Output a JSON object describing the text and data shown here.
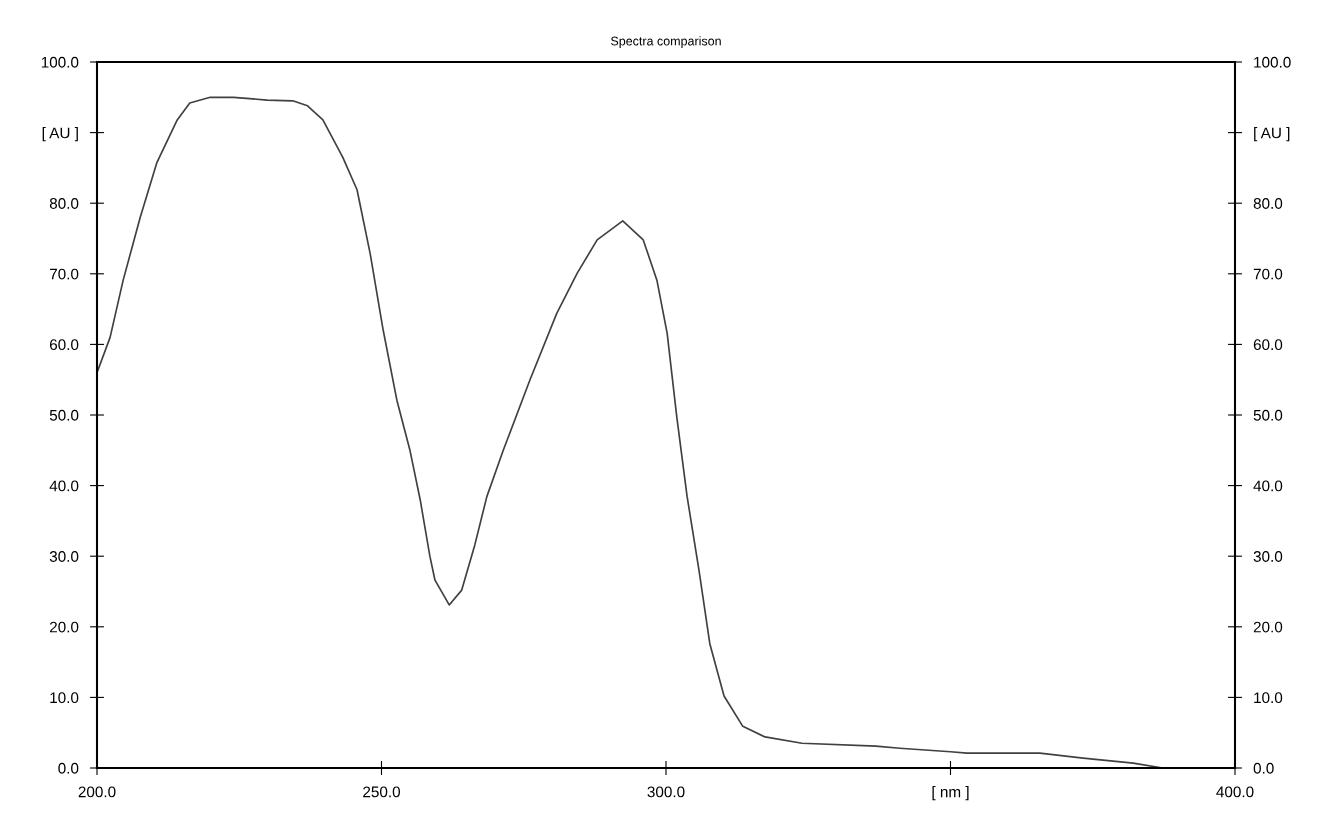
{
  "chart_data": {
    "type": "line",
    "title": "Spectra comparison",
    "xlim": [
      200,
      400
    ],
    "xticks": [
      {
        "value": 200,
        "label": "200.0"
      },
      {
        "value": 250,
        "label": "250.0"
      },
      {
        "value": 300,
        "label": "300.0"
      },
      {
        "value": 350,
        "label": "[ nm ]"
      },
      {
        "value": 400,
        "label": "400.0"
      }
    ],
    "ylim": [
      0,
      100
    ],
    "yticks": [
      {
        "value": 0,
        "label": "0.0"
      },
      {
        "value": 10,
        "label": "10.0"
      },
      {
        "value": 20,
        "label": "20.0"
      },
      {
        "value": 30,
        "label": "30.0"
      },
      {
        "value": 40,
        "label": "40.0"
      },
      {
        "value": 50,
        "label": "50.0"
      },
      {
        "value": 60,
        "label": "60.0"
      },
      {
        "value": 70,
        "label": "70.0"
      },
      {
        "value": 80,
        "label": "80.0"
      },
      {
        "value": 90,
        "label": "[ AU ]"
      },
      {
        "value": 100,
        "label": "100.0"
      }
    ],
    "y2lim": [
      0,
      100
    ],
    "y2ticks": [
      {
        "value": 0,
        "label": "0.0"
      },
      {
        "value": 10,
        "label": "10.0"
      },
      {
        "value": 20,
        "label": "20.0"
      },
      {
        "value": 30,
        "label": "30.0"
      },
      {
        "value": 40,
        "label": "40.0"
      },
      {
        "value": 50,
        "label": "50.0"
      },
      {
        "value": 60,
        "label": "60.0"
      },
      {
        "value": 70,
        "label": "70.0"
      },
      {
        "value": 80,
        "label": "80.0"
      },
      {
        "value": 90,
        "label": "[ AU ]"
      },
      {
        "value": 100,
        "label": "100.0"
      }
    ],
    "grid": false,
    "marker": "none",
    "line_style": "solid",
    "series": [
      {
        "color": "#404040",
        "x": [
          200,
          202.3,
          204.6,
          207.6,
          210.5,
          214.1,
          216.3,
          219.9,
          224,
          229.9,
          234.4,
          237,
          239.7,
          243.2,
          245.7,
          248,
          250.3,
          252.7,
          255,
          256.8,
          258.5,
          259.4,
          261.9,
          264.1,
          266.4,
          268.5,
          271.4,
          276.1,
          280.8,
          284.4,
          287.9,
          292.4,
          296,
          298.4,
          300.2,
          301.9,
          303.7,
          305.8,
          307.7,
          310.2,
          313.5,
          317.4,
          323.9,
          336.9,
          341.1,
          350,
          352.9,
          365.7,
          373.3,
          382.1,
          387.3,
          392.1
        ],
        "values": [
          56,
          61,
          69.1,
          78,
          85.7,
          91.8,
          94.2,
          95.0,
          95.0,
          94.6,
          94.5,
          93.8,
          91.8,
          86.5,
          81.9,
          72.9,
          62,
          52.1,
          45,
          38,
          30,
          26.6,
          23.1,
          25.2,
          31.6,
          38.4,
          45,
          55,
          64.4,
          70.1,
          74.8,
          77.5,
          74.8,
          69.1,
          61.6,
          49.7,
          38.5,
          28,
          17.6,
          10.2,
          5.9,
          4.4,
          3.5,
          3.1,
          2.8,
          2.3,
          2.1,
          2.1,
          1.4,
          0.7,
          0,
          0
        ]
      }
    ]
  }
}
